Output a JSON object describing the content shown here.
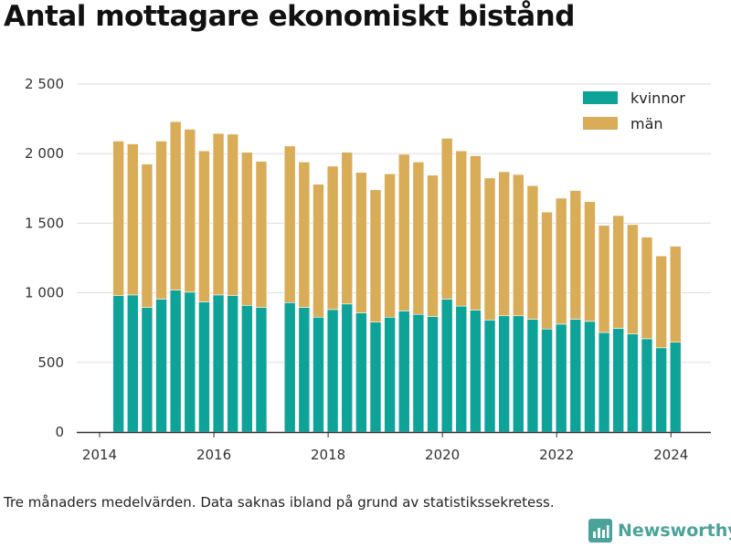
{
  "title": "Antal mottagare ekonomiskt bistånd",
  "footnote": "Tre månaders medelvärden. Data saknas ibland på grund av statistikssekretess.",
  "brand": {
    "name": "Newsworthy",
    "icon": "newsworthy-logo-icon"
  },
  "colors": {
    "kvinnor": "#0da399",
    "man": "#d9ac57",
    "grid": "#dddddd",
    "axis": "#333333"
  },
  "chart_data": {
    "type": "bar",
    "stacked": true,
    "title": "Antal mottagare ekonomiskt bistånd",
    "xlabel": "",
    "ylabel": "",
    "ylim": [
      0,
      2500
    ],
    "xlim": [
      2013.6,
      2024.7
    ],
    "yticks": [
      0,
      500,
      1000,
      1500,
      2000,
      2500
    ],
    "ytick_labels": [
      "0",
      "500",
      "1 000",
      "1 500",
      "2 000",
      "2 500"
    ],
    "xticks": [
      2014,
      2016,
      2018,
      2020,
      2022,
      2024
    ],
    "xtick_labels": [
      "2014",
      "2016",
      "2018",
      "2020",
      "2022",
      "2024"
    ],
    "grid": true,
    "legend_position": "top-right",
    "x": [
      2014.33,
      2014.58,
      2014.83,
      2015.08,
      2015.33,
      2015.58,
      2015.83,
      2016.08,
      2016.33,
      2016.58,
      2016.83,
      2017.33,
      2017.58,
      2017.83,
      2018.08,
      2018.33,
      2018.58,
      2018.83,
      2019.08,
      2019.33,
      2019.58,
      2019.83,
      2020.08,
      2020.33,
      2020.58,
      2020.83,
      2021.08,
      2021.33,
      2021.58,
      2021.83,
      2022.08,
      2022.33,
      2022.58,
      2022.83,
      2023.08,
      2023.33,
      2023.58,
      2023.83,
      2024.08
    ],
    "series": [
      {
        "name": "kvinnor",
        "values": [
          980,
          985,
          895,
          955,
          1020,
          1005,
          935,
          985,
          980,
          910,
          895,
          930,
          895,
          825,
          880,
          920,
          855,
          790,
          825,
          870,
          845,
          830,
          955,
          905,
          875,
          805,
          835,
          835,
          810,
          740,
          775,
          810,
          795,
          715,
          745,
          705,
          670,
          605,
          645
        ]
      },
      {
        "name": "män",
        "values": [
          1110,
          1085,
          1030,
          1135,
          1210,
          1170,
          1085,
          1160,
          1160,
          1100,
          1050,
          1125,
          1045,
          955,
          1030,
          1090,
          1010,
          950,
          1030,
          1125,
          1095,
          1015,
          1155,
          1115,
          1110,
          1020,
          1035,
          1015,
          960,
          840,
          905,
          925,
          860,
          770,
          810,
          785,
          730,
          660,
          690
        ]
      }
    ]
  }
}
